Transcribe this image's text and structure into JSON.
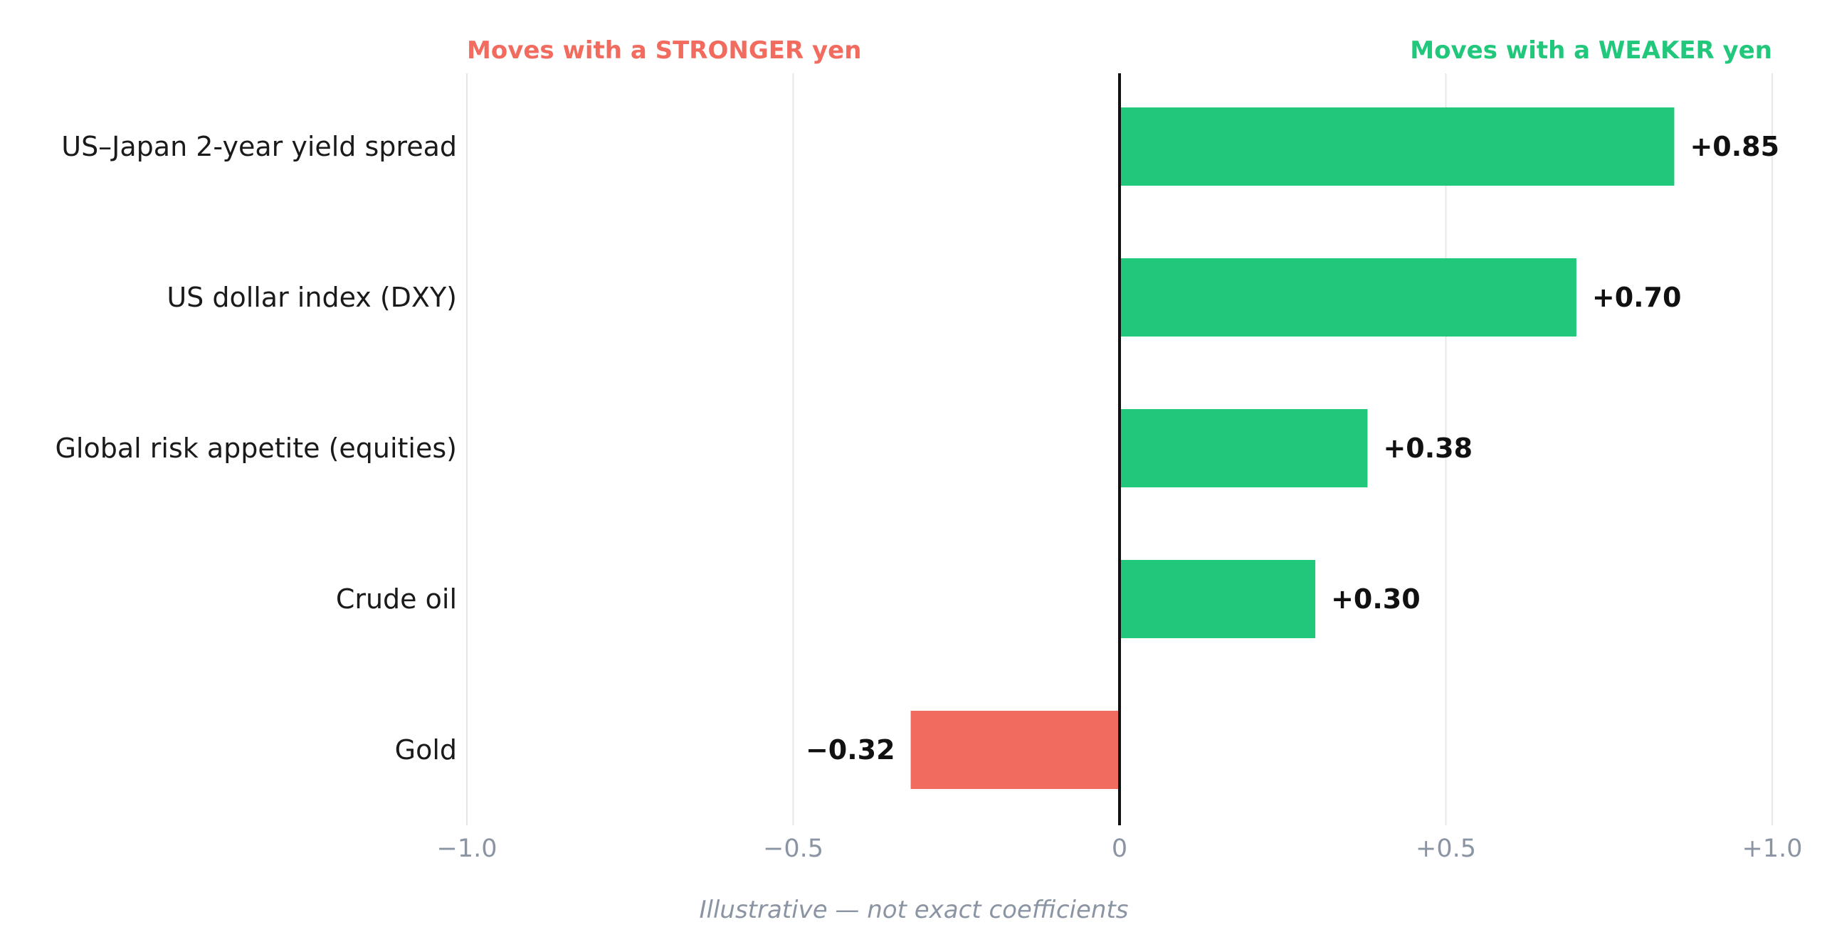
{
  "chart_data": {
    "type": "bar",
    "orientation": "horizontal",
    "categories": [
      "US–Japan 2-year yield spread",
      "US dollar index (DXY)",
      "Global risk appetite (equities)",
      "Crude oil",
      "Gold"
    ],
    "values": [
      0.85,
      0.7,
      0.38,
      0.3,
      -0.32
    ],
    "value_labels": [
      "+0.85",
      "+0.70",
      "+0.38",
      "+0.30",
      "−0.32"
    ],
    "xlim": [
      -1.0,
      1.0
    ],
    "ticks": [
      -1.0,
      -0.5,
      0,
      0.5,
      1.0
    ],
    "tick_labels": [
      "−1.0",
      "−0.5",
      "0",
      "+0.5",
      "+1.0"
    ],
    "grid": true,
    "left_header": "Moves with a STRONGER yen",
    "right_header": "Moves with a WEAKER yen",
    "footnote": "Illustrative — not exact coefficients",
    "colors": {
      "positive": "#21c77a",
      "negative": "#f26b5f",
      "left_header": "#f26b5f",
      "right_header": "#21c77a"
    }
  }
}
